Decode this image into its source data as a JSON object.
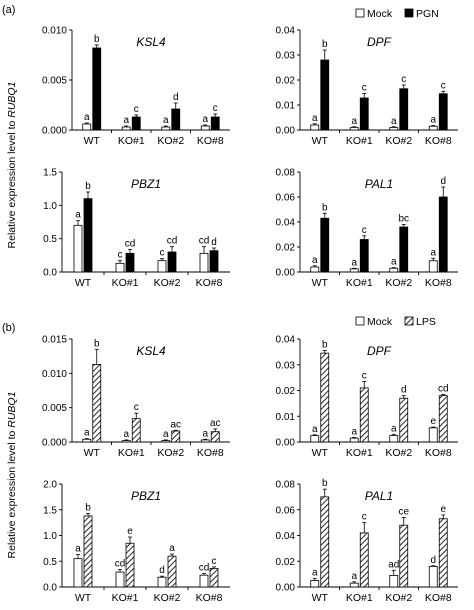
{
  "figure": {
    "ylabel_prefix": "Relative expression level to ",
    "ylabel_gene": "RUBQ1",
    "categories": [
      "WT",
      "KO#1",
      "KO#2",
      "KO#8"
    ]
  },
  "panels": [
    {
      "label": "(a)",
      "legend": [
        {
          "name": "Mock",
          "fill": "white"
        },
        {
          "name": "PGN",
          "fill": "black"
        }
      ]
    },
    {
      "label": "(b)",
      "legend": [
        {
          "name": "Mock",
          "fill": "white"
        },
        {
          "name": "LPS",
          "fill": "hatch"
        }
      ]
    }
  ],
  "colors": {
    "axis": "#000000",
    "treatment_solid": "#000000",
    "mock": "#ffffff",
    "hatch": "#000000"
  },
  "chart_data": [
    {
      "type": "bar",
      "panel": "a",
      "title": "KSL4",
      "categories": [
        "WT",
        "KO#1",
        "KO#2",
        "KO#8"
      ],
      "ylim": [
        0,
        0.01
      ],
      "yticks": [
        "0.000",
        "0.005",
        "0.010"
      ],
      "ytick_values": [
        0,
        0.005,
        0.01
      ],
      "series": [
        {
          "name": "Mock",
          "values": [
            0.0006,
            0.0003,
            0.0003,
            0.0004
          ],
          "errors": [
            0.0001,
            0.0001,
            0.0001,
            0.0001
          ],
          "letters": [
            "a",
            "a",
            "a",
            "a"
          ]
        },
        {
          "name": "PGN",
          "values": [
            0.0082,
            0.0013,
            0.0021,
            0.0013
          ],
          "errors": [
            0.0003,
            0.0002,
            0.0006,
            0.0003
          ],
          "letters": [
            "b",
            "c",
            "d",
            "c"
          ]
        }
      ]
    },
    {
      "type": "bar",
      "panel": "a",
      "title": "DPF",
      "categories": [
        "WT",
        "KO#1",
        "KO#2",
        "KO#8"
      ],
      "ylim": [
        0,
        0.04
      ],
      "yticks": [
        "0.00",
        "0.01",
        "0.02",
        "0.03",
        "0.04"
      ],
      "ytick_values": [
        0,
        0.01,
        0.02,
        0.03,
        0.04
      ],
      "series": [
        {
          "name": "Mock",
          "values": [
            0.002,
            0.001,
            0.001,
            0.0015
          ],
          "errors": [
            0.0005,
            0.0003,
            0.0003,
            0.0003
          ],
          "letters": [
            "a",
            "a",
            "a",
            "a"
          ]
        },
        {
          "name": "PGN",
          "values": [
            0.028,
            0.0128,
            0.0165,
            0.0145
          ],
          "errors": [
            0.004,
            0.0018,
            0.0015,
            0.001
          ],
          "letters": [
            "b",
            "c",
            "c",
            "c"
          ]
        }
      ]
    },
    {
      "type": "bar",
      "panel": "a",
      "title": "PBZ1",
      "categories": [
        "WT",
        "KO#1",
        "KO#2",
        "KO#8"
      ],
      "ylim": [
        0,
        1.5
      ],
      "yticks": [
        "0.0",
        "0.5",
        "1.0",
        "1.5"
      ],
      "ytick_values": [
        0,
        0.5,
        1.0,
        1.5
      ],
      "series": [
        {
          "name": "Mock",
          "values": [
            0.7,
            0.13,
            0.17,
            0.28
          ],
          "errors": [
            0.07,
            0.04,
            0.03,
            0.1
          ],
          "letters": [
            "a",
            "c",
            "c",
            "cd"
          ]
        },
        {
          "name": "PGN",
          "values": [
            1.1,
            0.28,
            0.3,
            0.32
          ],
          "errors": [
            0.1,
            0.06,
            0.08,
            0.04
          ],
          "letters": [
            "b",
            "cd",
            "cd",
            "d"
          ]
        }
      ]
    },
    {
      "type": "bar",
      "panel": "a",
      "title": "PAL1",
      "categories": [
        "WT",
        "KO#1",
        "KO#2",
        "KO#8"
      ],
      "ylim": [
        0,
        0.08
      ],
      "yticks": [
        "0.00",
        "0.02",
        "0.04",
        "0.06",
        "0.08"
      ],
      "ytick_values": [
        0,
        0.02,
        0.04,
        0.06,
        0.08
      ],
      "series": [
        {
          "name": "Mock",
          "values": [
            0.004,
            0.0025,
            0.003,
            0.009
          ],
          "errors": [
            0.001,
            0.0005,
            0.0005,
            0.002
          ],
          "letters": [
            "a",
            "a",
            "a",
            "a"
          ]
        },
        {
          "name": "PGN",
          "values": [
            0.043,
            0.026,
            0.036,
            0.06
          ],
          "errors": [
            0.004,
            0.003,
            0.002,
            0.008
          ],
          "letters": [
            "b",
            "c",
            "bc",
            "d"
          ]
        }
      ]
    },
    {
      "type": "bar",
      "panel": "b",
      "title": "KSL4",
      "categories": [
        "WT",
        "KO#1",
        "KO#2",
        "KO#8"
      ],
      "ylim": [
        0,
        0.015
      ],
      "yticks": [
        "0.000",
        "0.005",
        "0.010",
        "0.015"
      ],
      "ytick_values": [
        0,
        0.005,
        0.01,
        0.015
      ],
      "series": [
        {
          "name": "Mock",
          "values": [
            0.0004,
            0.0002,
            0.0002,
            0.0003
          ],
          "errors": [
            0.0001,
            0.0001,
            0.0001,
            0.0001
          ],
          "letters": [
            "a",
            "a",
            "a",
            "a"
          ]
        },
        {
          "name": "LPS",
          "values": [
            0.0113,
            0.0034,
            0.0016,
            0.0015
          ],
          "errors": [
            0.0022,
            0.0008,
            0.0001,
            0.0004
          ],
          "letters": [
            "b",
            "c",
            "ac",
            "ac"
          ]
        }
      ]
    },
    {
      "type": "bar",
      "panel": "b",
      "title": "DPF",
      "categories": [
        "WT",
        "KO#1",
        "KO#2",
        "KO#8"
      ],
      "ylim": [
        0,
        0.04
      ],
      "yticks": [
        "0.00",
        "0.01",
        "0.02",
        "0.03",
        "0.04"
      ],
      "ytick_values": [
        0,
        0.01,
        0.02,
        0.03,
        0.04
      ],
      "series": [
        {
          "name": "Mock",
          "values": [
            0.0025,
            0.0015,
            0.0025,
            0.0055
          ],
          "errors": [
            0.0003,
            0.0003,
            0.0005,
            0.0003
          ],
          "letters": [
            "a",
            "a",
            "a",
            "e"
          ]
        },
        {
          "name": "LPS",
          "values": [
            0.0345,
            0.021,
            0.017,
            0.018
          ],
          "errors": [
            0.001,
            0.0025,
            0.001,
            0.0005
          ],
          "letters": [
            "b",
            "c",
            "d",
            "cd"
          ]
        }
      ]
    },
    {
      "type": "bar",
      "panel": "b",
      "title": "PBZ1",
      "categories": [
        "WT",
        "KO#1",
        "KO#2",
        "KO#8"
      ],
      "ylim": [
        0,
        2.0
      ],
      "yticks": [
        "0.0",
        "0.5",
        "1.0",
        "1.5",
        "2.0"
      ],
      "ytick_values": [
        0,
        0.5,
        1.0,
        1.5,
        2.0
      ],
      "series": [
        {
          "name": "Mock",
          "values": [
            0.55,
            0.29,
            0.19,
            0.23
          ],
          "errors": [
            0.08,
            0.05,
            0.02,
            0.03
          ],
          "letters": [
            "a",
            "cd",
            "d",
            "cd"
          ]
        },
        {
          "name": "LPS",
          "values": [
            1.38,
            0.85,
            0.6,
            0.36
          ],
          "errors": [
            0.05,
            0.12,
            0.04,
            0.03
          ],
          "letters": [
            "b",
            "e",
            "a",
            "c"
          ]
        }
      ]
    },
    {
      "type": "bar",
      "panel": "b",
      "title": "PAL1",
      "categories": [
        "WT",
        "KO#1",
        "KO#2",
        "KO#8"
      ],
      "ylim": [
        0,
        0.08
      ],
      "yticks": [
        "0.00",
        "0.02",
        "0.04",
        "0.06",
        "0.08"
      ],
      "ytick_values": [
        0,
        0.02,
        0.04,
        0.06,
        0.08
      ],
      "series": [
        {
          "name": "Mock",
          "values": [
            0.005,
            0.003,
            0.009,
            0.016
          ],
          "errors": [
            0.0015,
            0.001,
            0.004,
            0.0005
          ],
          "letters": [
            "a",
            "a",
            "ad",
            "d"
          ]
        },
        {
          "name": "LPS",
          "values": [
            0.07,
            0.042,
            0.048,
            0.053
          ],
          "errors": [
            0.006,
            0.008,
            0.006,
            0.003
          ],
          "letters": [
            "b",
            "c",
            "ce",
            "e"
          ]
        }
      ]
    }
  ]
}
